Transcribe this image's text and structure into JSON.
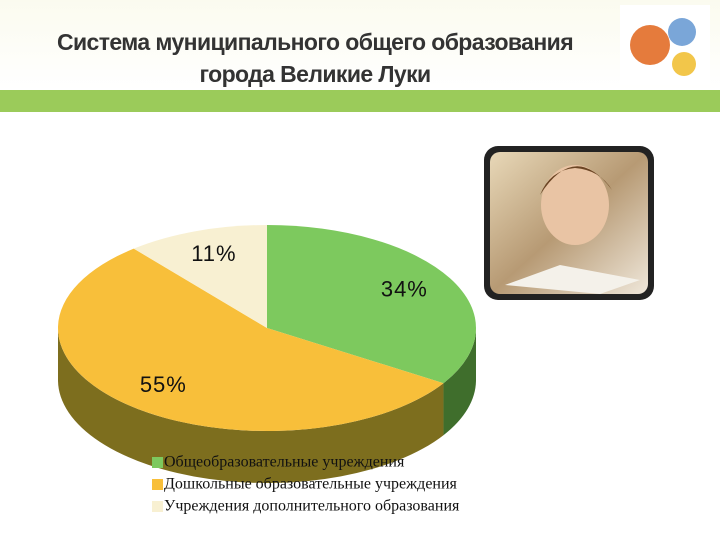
{
  "chart_data": {
    "type": "pie3d",
    "title": "Система муниципального общего образования\nгорода Великие Луки",
    "categories": [
      "Общеобразовательные учреждения",
      "Дошкольные образовательные учреждения",
      "Учреждения дополнительного образования"
    ],
    "values": [
      34,
      55,
      11
    ],
    "value_labels": [
      "34%",
      "55%",
      "11%"
    ],
    "colors": [
      "#7dc95e",
      "#f8bf3a",
      "#f8f0d2"
    ],
    "side_colors": [
      "#3f6e2c",
      "#7d6e1e",
      "#c9bf98"
    ]
  }
}
